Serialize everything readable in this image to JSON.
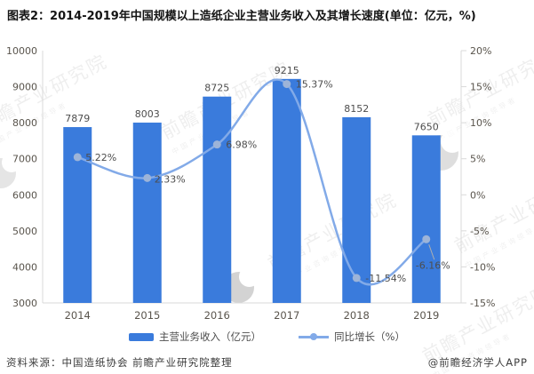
{
  "title": "图表2：2014-2019年中国规模以上造纸企业主营业务收入及其增长速度(单位：亿元，%)",
  "chart_data": {
    "type": "bar",
    "subtype": "bar+line combo",
    "categories": [
      "2014",
      "2015",
      "2016",
      "2017",
      "2018",
      "2019"
    ],
    "series": [
      {
        "name": "主营业务收入（亿元）",
        "type": "bar",
        "axis": "left",
        "values": [
          7879,
          8003,
          8725,
          9215,
          8152,
          7650
        ],
        "labels": [
          "7879",
          "8003",
          "8725",
          "9215",
          "8152",
          "7650"
        ]
      },
      {
        "name": "同比增长（%）",
        "type": "line",
        "axis": "right",
        "values": [
          5.22,
          2.33,
          6.98,
          15.37,
          -11.54,
          -6.16
        ],
        "labels": [
          "5.22%",
          "2.33%",
          "6.98%",
          "15.37%",
          "-11.54%",
          "-6.16%"
        ]
      }
    ],
    "left_axis": {
      "min": 3000,
      "max": 10000,
      "step": 1000,
      "ticks": [
        "10000",
        "9000",
        "8000",
        "7000",
        "6000",
        "5000",
        "4000",
        "3000"
      ]
    },
    "right_axis": {
      "min": -15,
      "max": 20,
      "step": 5,
      "ticks": [
        "20%",
        "15%",
        "10%",
        "5%",
        "0%",
        "-5%",
        "-10%",
        "-15%"
      ]
    },
    "legend_position": "bottom",
    "grid": false
  },
  "footer": {
    "source": "资料来源：中国造纸协会 前瞻产业研究院整理",
    "credit": "@前瞻经济学人APP"
  },
  "watermark": {
    "text": "前瞻产业研究院",
    "subtext": "中国产业咨询领导者"
  },
  "colors": {
    "bar": "#3a7bdc",
    "line": "#82aae8",
    "marker": "#9db4d8",
    "axis": "#d9d9d9",
    "tick_text": "#59544c",
    "data_label": "#4d4d4d",
    "leader": "#b0b0b0"
  }
}
